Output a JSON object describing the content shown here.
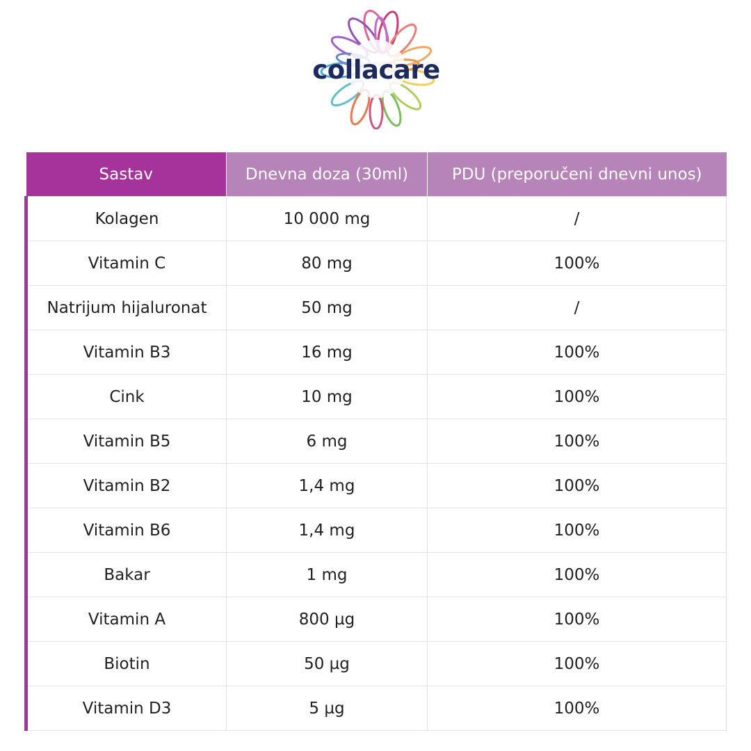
{
  "brand": {
    "name": "collacare",
    "text_color": "#1d2a5e"
  },
  "colors": {
    "header_primary": "#a6329b",
    "header_secondary": "#b684b8",
    "accent_bar": "#a6329b"
  },
  "table": {
    "headers": [
      "Sastav",
      "Dnevna doza (30ml)",
      "PDU (preporučeni dnevni unos)"
    ],
    "rows": [
      [
        "Kolagen",
        "10 000 mg",
        "/"
      ],
      [
        "Vitamin C",
        "80 mg",
        "100%"
      ],
      [
        "Natrijum hijaluronat",
        "50 mg",
        "/"
      ],
      [
        "Vitamin B3",
        "16 mg",
        "100%"
      ],
      [
        "Cink",
        "10 mg",
        "100%"
      ],
      [
        "Vitamin B5",
        "6 mg",
        "100%"
      ],
      [
        "Vitamin B2",
        "1,4 mg",
        "100%"
      ],
      [
        "Vitamin B6",
        "1,4 mg",
        "100%"
      ],
      [
        "Bakar",
        "1 mg",
        "100%"
      ],
      [
        "Vitamin A",
        "800 µg",
        "100%"
      ],
      [
        "Biotin",
        "50 µg",
        "100%"
      ],
      [
        "Vitamin D3",
        "5 µg",
        "100%"
      ]
    ]
  }
}
